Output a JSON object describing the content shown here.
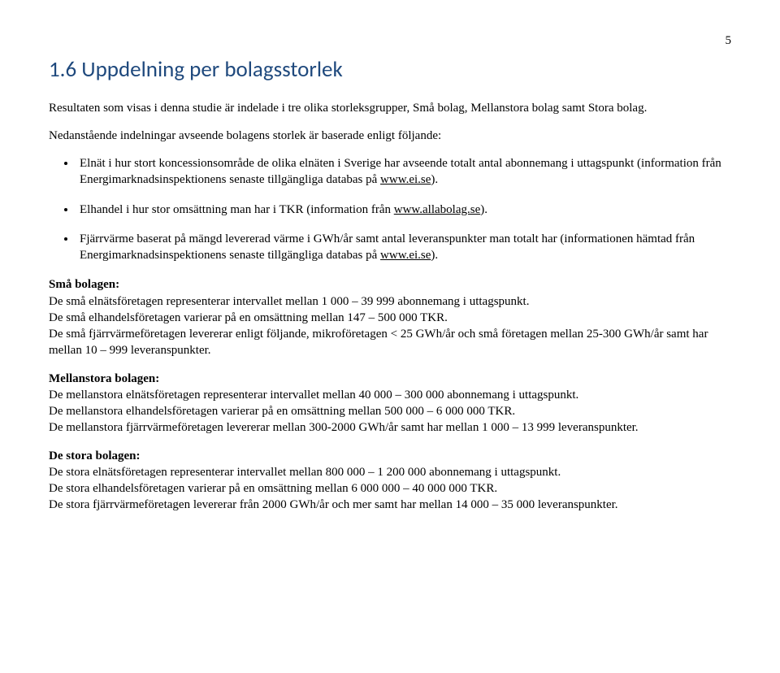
{
  "pageNumber": "5",
  "heading": "1.6 Uppdelning per bolagsstorlek",
  "intro": "Resultaten som visas i denna studie är indelade i tre olika storleksgrupper, Små bolag, Mellanstora bolag samt Stora bolag.",
  "lead": "Nedanstående indelningar avseende bolagens storlek är baserade enligt följande:",
  "bullet1_a": "Elnät i hur stort koncessionsområde de olika elnäten i Sverige har avseende totalt antal abonnemang i uttagspunkt (information från Energimarknadsinspektionens senaste tillgängliga databas på ",
  "bullet1_link": "www.ei.se",
  "bullet1_b": ").",
  "bullet2_a": "Elhandel i hur stor omsättning man har i TKR (information från ",
  "bullet2_link": "www.allabolag.se",
  "bullet2_b": ").",
  "bullet3_a": "Fjärrvärme baserat på mängd levererad värme i GWh/år samt antal leveranspunkter man totalt har (informationen hämtad från Energimarknadsinspektionens senaste tillgängliga databas på ",
  "bullet3_link": "www.ei.se",
  "bullet3_b": ").",
  "small_label": "Små bolagen:",
  "small_l1": "De små elnätsföretagen representerar intervallet mellan 1 000 – 39 999 abonnemang i uttagspunkt.",
  "small_l2": "De små elhandelsföretagen varierar på en omsättning mellan 147 – 500 000 TKR.",
  "small_l3": "De små fjärrvärmeföretagen levererar enligt följande, mikroföretagen < 25 GWh/år och små företagen mellan 25-300 GWh/år samt har mellan 10 – 999 leveranspunkter.",
  "mid_label": "Mellanstora bolagen:",
  "mid_l1": "De mellanstora elnätsföretagen representerar intervallet mellan 40 000 – 300 000 abonnemang i uttagspunkt.",
  "mid_l2": "De mellanstora elhandelsföretagen varierar på en omsättning mellan 500 000 – 6 000 000 TKR.",
  "mid_l3": "De mellanstora fjärrvärmeföretagen levererar mellan 300-2000 GWh/år samt har mellan 1 000 – 13 999 leveranspunkter.",
  "big_label": "De stora bolagen:",
  "big_l1": "De stora elnätsföretagen representerar intervallet mellan 800 000 – 1 200 000 abonnemang i uttagspunkt.",
  "big_l2": "De stora elhandelsföretagen varierar på en omsättning mellan 6 000 000 – 40 000 000 TKR.",
  "big_l3": "De stora fjärrvärmeföretagen levererar från 2000 GWh/år och mer samt har mellan 14 000 – 35 000 leveranspunkter."
}
